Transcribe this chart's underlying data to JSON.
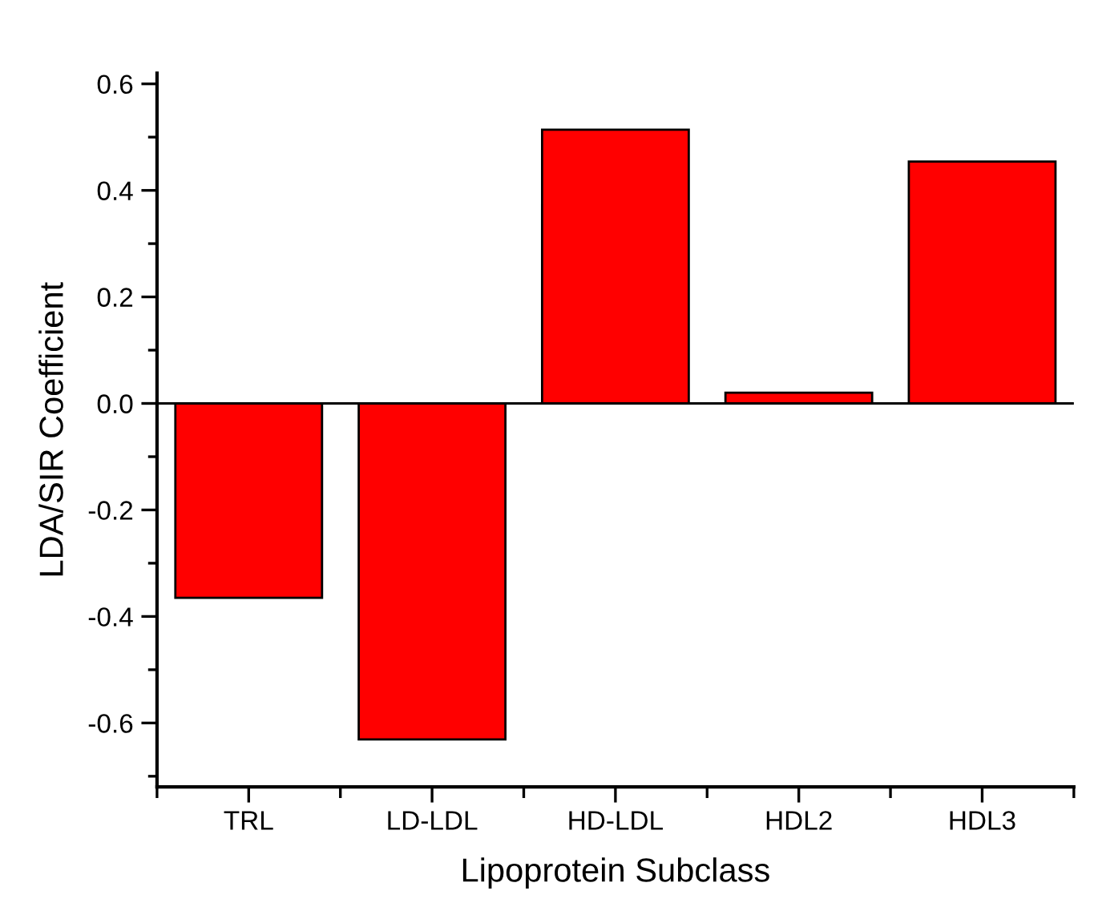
{
  "chart_data": {
    "type": "bar",
    "xlabel": "Lipoprotein Subclass",
    "ylabel": "LDA/SIR Coefficient",
    "categories": [
      "TRL",
      "LD-LDL",
      "HD-LDL",
      "HDL2",
      "HDL3"
    ],
    "values": [
      -0.365,
      -0.631,
      0.514,
      0.02,
      0.454
    ],
    "color": "#ff0000",
    "ylim": [
      -0.72,
      0.62
    ],
    "yticks": [
      -0.6,
      -0.4,
      -0.2,
      {
        "value": 0,
        "label": "0.0"
      },
      0.2,
      0.4,
      0.6
    ],
    "grid": false,
    "ref_lines": [
      {
        "axis": "y",
        "value": 0.0,
        "color": "#000000"
      }
    ]
  }
}
